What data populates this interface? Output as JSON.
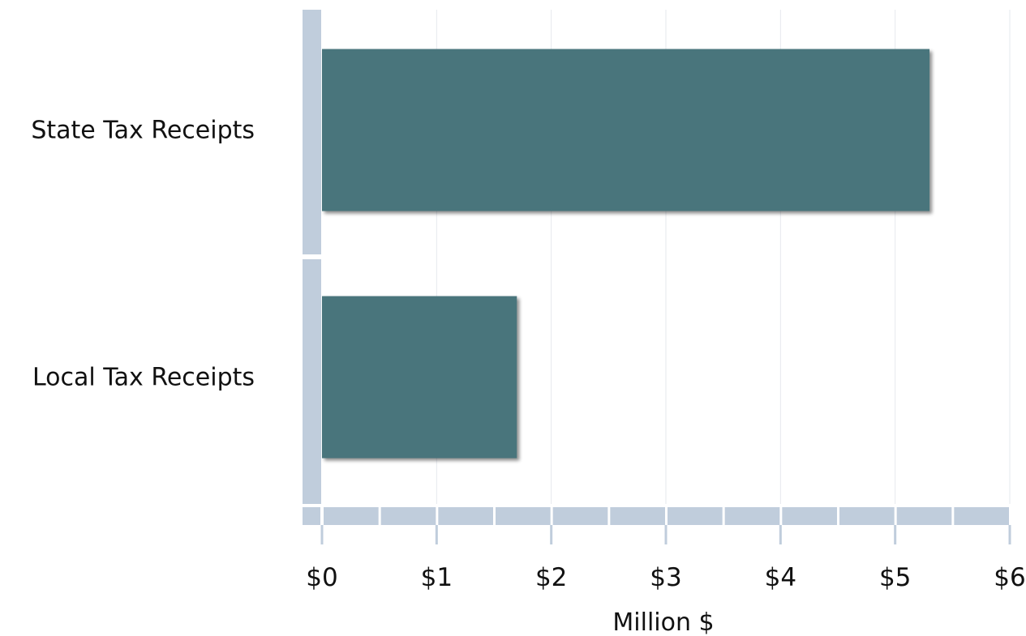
{
  "chart_data": {
    "type": "bar",
    "orientation": "horizontal",
    "categories": [
      "State Tax Receipts",
      "Local Tax Receipts"
    ],
    "values": [
      5.3,
      1.7
    ],
    "xlabel": "Million $",
    "ylabel": "",
    "xlim": [
      0,
      6
    ],
    "x_ticks": [
      0,
      1,
      2,
      3,
      4,
      5,
      6
    ],
    "x_tick_labels": [
      "$0",
      "$1",
      "$2",
      "$3",
      "$4",
      "$5",
      "$6"
    ],
    "grid": true,
    "legend": "none",
    "colors": {
      "bar": "#48757c",
      "axis_band": "#c0cddc",
      "grid": "#e6e9ee",
      "text": "#111111"
    }
  }
}
